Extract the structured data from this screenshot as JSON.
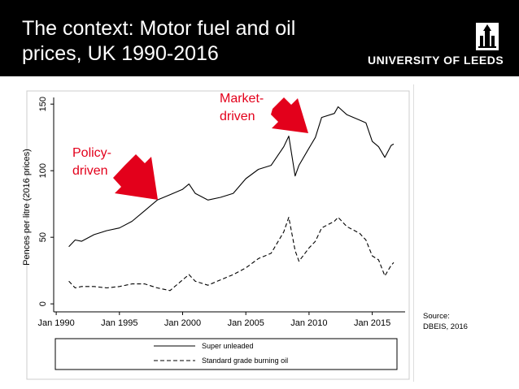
{
  "slide": {
    "title_line1": "The context: Motor fuel and oil",
    "title_line2": "prices, UK 1990-2016",
    "logo_text": "UNIVERSITY OF LEEDS",
    "source_line1": "Source:",
    "source_line2": "DBEIS, 2016"
  },
  "colors": {
    "header_bg": "#000000",
    "annotation": "#e3001b",
    "arrow": "#e3001b",
    "series": "#000000"
  },
  "annotations": [
    {
      "line1": "Policy-",
      "line2": "driven"
    },
    {
      "line1": "Market-",
      "line2": "driven"
    }
  ],
  "chart_data": {
    "type": "line",
    "title": "",
    "xlabel": "",
    "ylabel": "Pences per litre (2016 prices)",
    "xlim": [
      1989.8,
      2017.6
    ],
    "ylim": [
      -6,
      155
    ],
    "xticks": [
      {
        "value": 1990,
        "label": "Jan 1990"
      },
      {
        "value": 1995,
        "label": "Jan 1995"
      },
      {
        "value": 2000,
        "label": "Jan 2000"
      },
      {
        "value": 2005,
        "label": "Jan 2005"
      },
      {
        "value": 2010,
        "label": "Jan 2010"
      },
      {
        "value": 2015,
        "label": "Jan 2015"
      }
    ],
    "yticks": [
      0,
      50,
      100,
      150
    ],
    "grid": false,
    "legend_position": "bottom",
    "series": [
      {
        "name": "Super unleaded",
        "style": "solid",
        "x": [
          1991.0,
          1991.5,
          1992.0,
          1993.0,
          1994.0,
          1995.0,
          1996.0,
          1997.0,
          1998.0,
          1999.0,
          2000.0,
          2000.5,
          2001.0,
          2002.0,
          2003.0,
          2004.0,
          2005.0,
          2006.0,
          2007.0,
          2008.0,
          2008.4,
          2008.9,
          2009.2,
          2010.0,
          2010.5,
          2011.0,
          2012.0,
          2012.3,
          2013.0,
          2014.0,
          2014.5,
          2015.0,
          2015.5,
          2016.0,
          2016.5,
          2016.7
        ],
        "y": [
          43,
          48,
          47,
          52,
          55,
          57,
          62,
          70,
          78,
          82,
          86,
          90,
          83,
          78,
          80,
          83,
          94,
          101,
          104,
          118,
          126,
          96,
          104,
          117,
          125,
          140,
          143,
          148,
          142,
          138,
          136,
          122,
          118,
          110,
          119,
          120
        ]
      },
      {
        "name": "Standard grade burning oil",
        "style": "dashed",
        "x": [
          1991.0,
          1991.5,
          1992.0,
          1993.0,
          1994.0,
          1995.0,
          1996.0,
          1997.0,
          1998.0,
          1999.0,
          2000.0,
          2000.5,
          2001.0,
          2002.0,
          2003.0,
          2004.0,
          2005.0,
          2006.0,
          2007.0,
          2008.0,
          2008.4,
          2008.9,
          2009.2,
          2010.0,
          2010.5,
          2011.0,
          2012.0,
          2012.3,
          2013.0,
          2014.0,
          2014.5,
          2015.0,
          2015.5,
          2016.0,
          2016.5,
          2016.7
        ],
        "y": [
          17,
          12,
          13,
          13,
          12,
          13,
          15,
          15,
          12,
          10,
          18,
          22,
          17,
          14,
          18,
          22,
          27,
          34,
          38,
          54,
          65,
          40,
          32,
          42,
          47,
          57,
          62,
          65,
          58,
          53,
          48,
          36,
          33,
          21,
          29,
          31
        ]
      }
    ]
  }
}
